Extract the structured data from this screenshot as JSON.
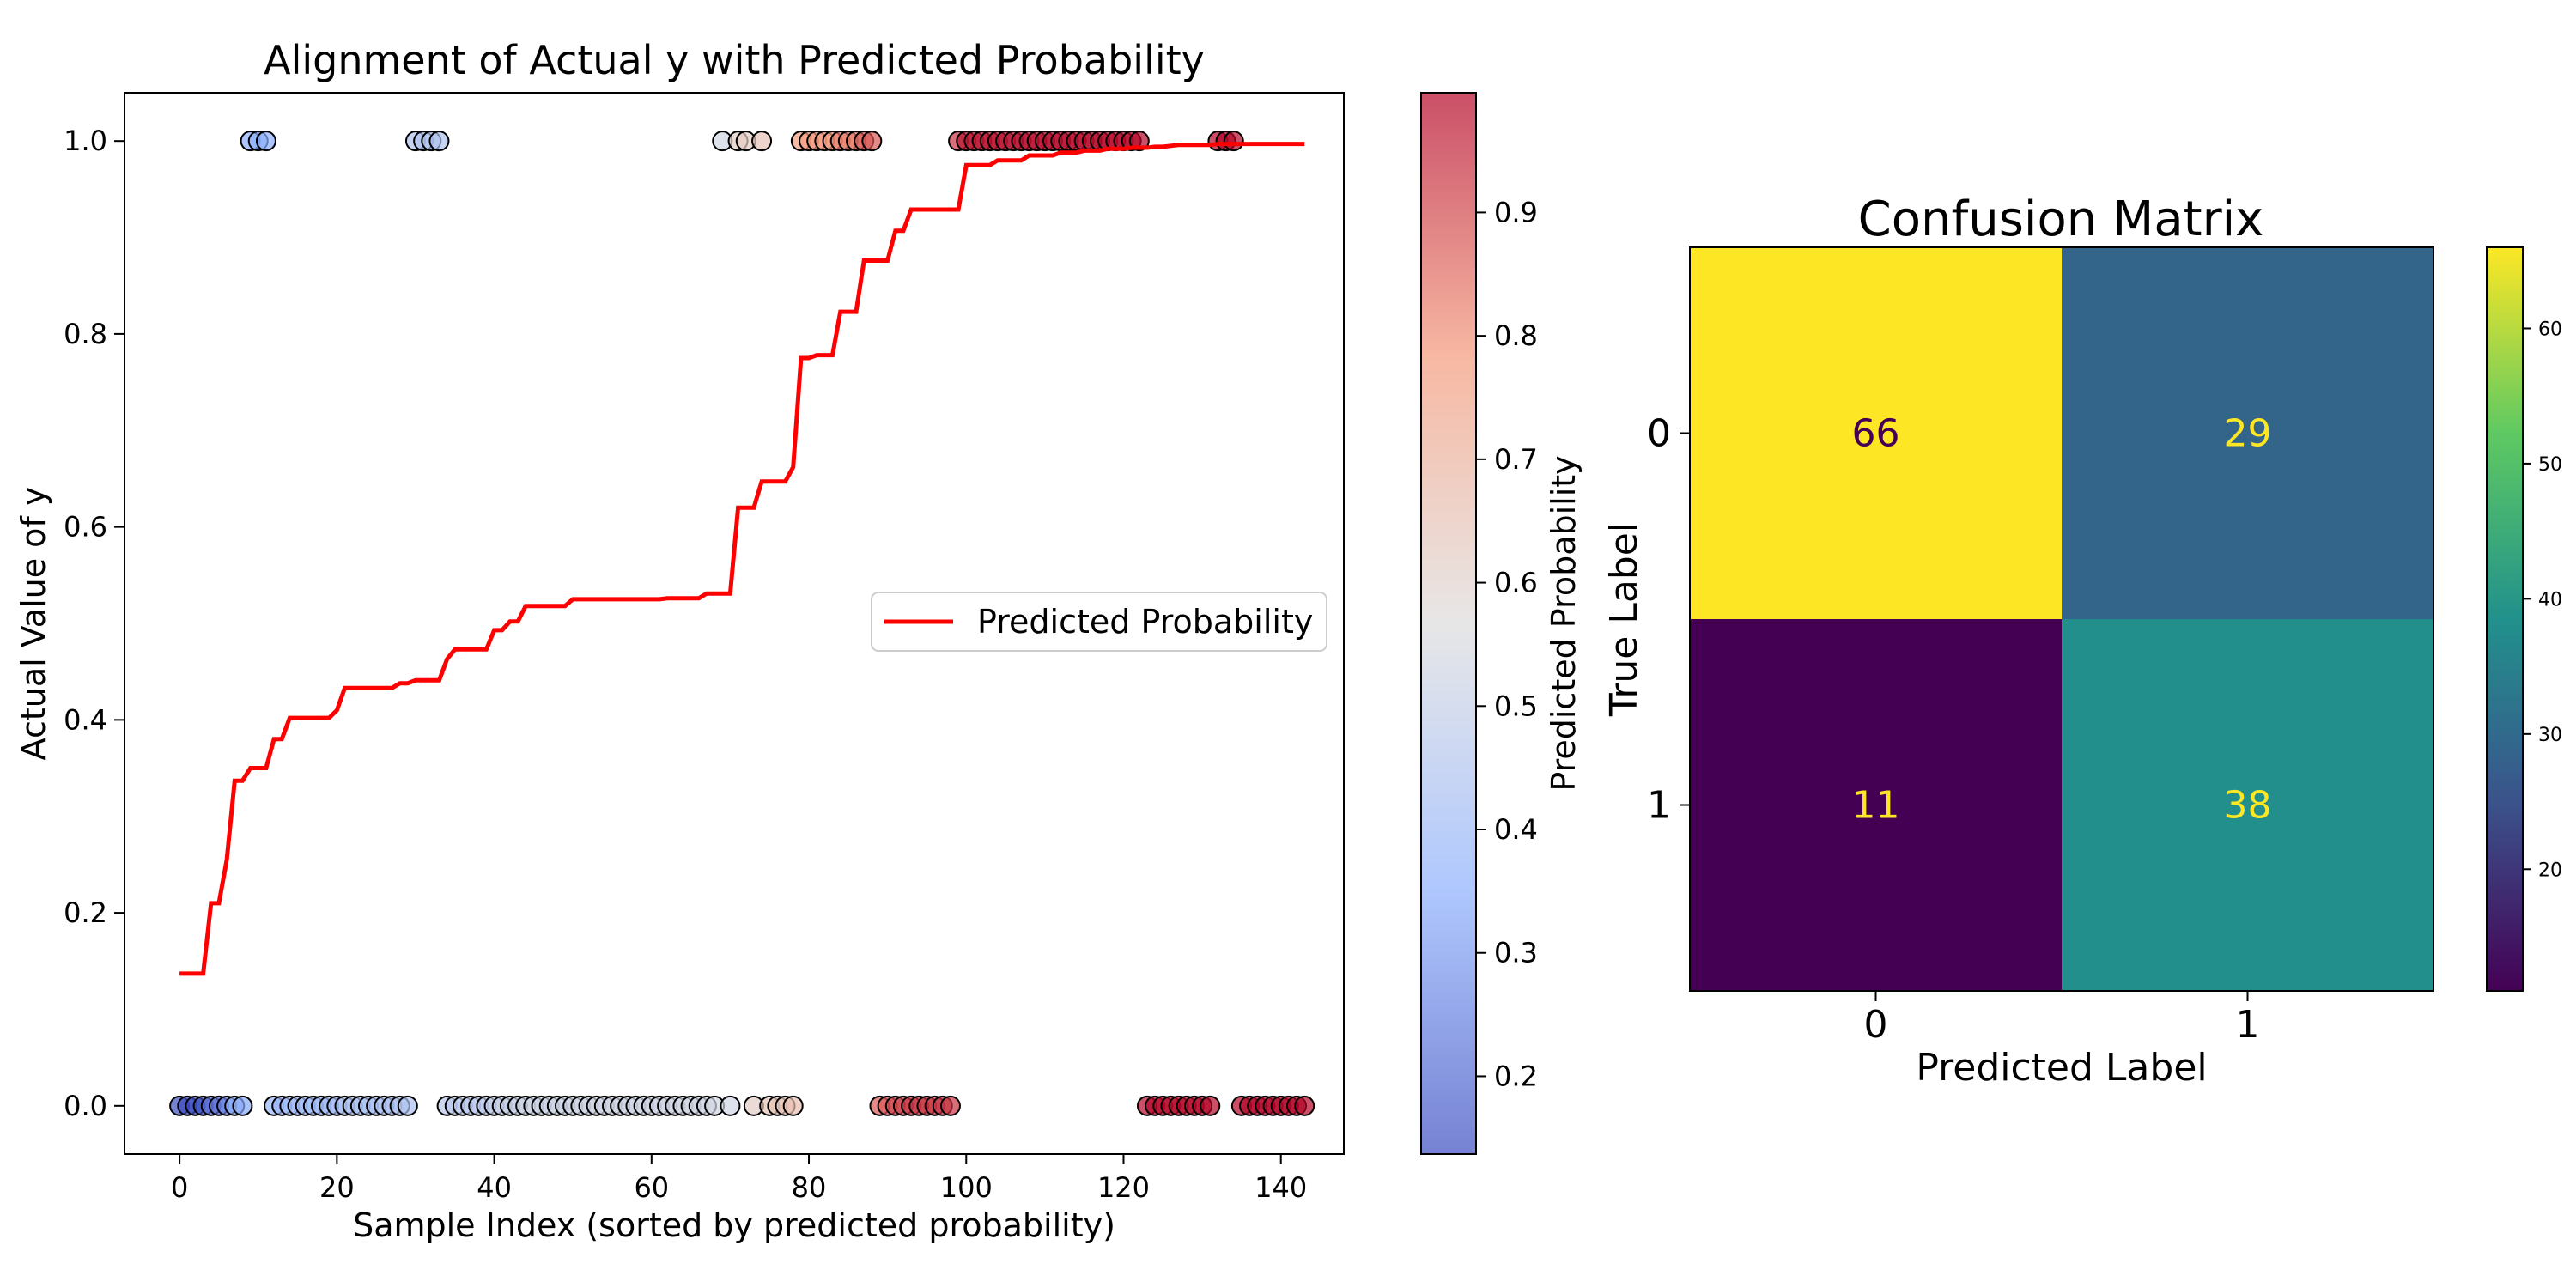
{
  "chart_data": [
    {
      "type": "scatter",
      "title": "Alignment of Actual y with Predicted Probability",
      "xlabel": "Sample Index (sorted by predicted probability)",
      "ylabel": "Actual Value of y",
      "xlim": [
        -7,
        148
      ],
      "ylim": [
        -0.05,
        1.05
      ],
      "xticks": [
        0,
        20,
        40,
        60,
        80,
        100,
        120,
        140
      ],
      "yticks": [
        0.0,
        0.2,
        0.4,
        0.6,
        0.8,
        1.0
      ],
      "xticklabels": [
        "0",
        "20",
        "40",
        "60",
        "80",
        "100",
        "120",
        "140"
      ],
      "yticklabels": [
        "0.0",
        "0.2",
        "0.4",
        "0.6",
        "0.8",
        "1.0"
      ],
      "grid": false,
      "legend": {
        "position": "center-right",
        "entries": [
          "Predicted Probability"
        ]
      },
      "colorbar": {
        "label": "Predicted Probability",
        "range": [
          0.137,
          0.997
        ],
        "ticks": [
          0.2,
          0.3,
          0.4,
          0.5,
          0.6,
          0.7,
          0.8,
          0.9
        ],
        "ticklabels": [
          "0.2",
          "0.3",
          "0.4",
          "0.5",
          "0.6",
          "0.7",
          "0.8",
          "0.9"
        ],
        "colormap": "coolwarm",
        "alpha": 0.7
      },
      "line_series": {
        "name": "Predicted Probability",
        "color": "#ff0000",
        "x": [
          0,
          1,
          2,
          3,
          4,
          5,
          6,
          7,
          8,
          9,
          10,
          11,
          12,
          13,
          14,
          15,
          16,
          17,
          18,
          19,
          20,
          21,
          22,
          23,
          24,
          25,
          26,
          27,
          28,
          29,
          30,
          31,
          32,
          33,
          34,
          35,
          36,
          37,
          38,
          39,
          40,
          41,
          42,
          43,
          44,
          45,
          46,
          47,
          48,
          49,
          50,
          51,
          52,
          53,
          54,
          55,
          56,
          57,
          58,
          59,
          60,
          61,
          62,
          63,
          64,
          65,
          66,
          67,
          68,
          69,
          70,
          71,
          72,
          73,
          74,
          75,
          76,
          77,
          78,
          79,
          80,
          81,
          82,
          83,
          84,
          85,
          86,
          87,
          88,
          89,
          90,
          91,
          92,
          93,
          94,
          95,
          96,
          97,
          98,
          99,
          100,
          101,
          102,
          103,
          104,
          105,
          106,
          107,
          108,
          109,
          110,
          111,
          112,
          113,
          114,
          115,
          116,
          117,
          118,
          119,
          120,
          121,
          122,
          123,
          124,
          125,
          126,
          127,
          128,
          129,
          130,
          131,
          132,
          133,
          134,
          135,
          136,
          137,
          138,
          139,
          140,
          141,
          142,
          143
        ],
        "y": [
          0.137,
          0.137,
          0.137,
          0.137,
          0.21,
          0.21,
          0.255,
          0.337,
          0.337,
          0.35,
          0.35,
          0.35,
          0.38,
          0.38,
          0.402,
          0.402,
          0.402,
          0.402,
          0.402,
          0.402,
          0.41,
          0.433,
          0.433,
          0.433,
          0.433,
          0.433,
          0.433,
          0.433,
          0.438,
          0.438,
          0.441,
          0.441,
          0.441,
          0.441,
          0.463,
          0.473,
          0.473,
          0.473,
          0.473,
          0.473,
          0.493,
          0.493,
          0.502,
          0.502,
          0.518,
          0.518,
          0.518,
          0.518,
          0.518,
          0.518,
          0.525,
          0.525,
          0.525,
          0.525,
          0.525,
          0.525,
          0.525,
          0.525,
          0.525,
          0.525,
          0.525,
          0.525,
          0.526,
          0.526,
          0.526,
          0.526,
          0.526,
          0.531,
          0.531,
          0.531,
          0.531,
          0.62,
          0.62,
          0.62,
          0.647,
          0.647,
          0.647,
          0.647,
          0.662,
          0.775,
          0.775,
          0.778,
          0.778,
          0.778,
          0.823,
          0.823,
          0.823,
          0.876,
          0.876,
          0.876,
          0.876,
          0.907,
          0.907,
          0.929,
          0.929,
          0.929,
          0.929,
          0.929,
          0.929,
          0.929,
          0.975,
          0.975,
          0.975,
          0.975,
          0.98,
          0.98,
          0.98,
          0.98,
          0.985,
          0.985,
          0.985,
          0.985,
          0.988,
          0.988,
          0.988,
          0.99,
          0.99,
          0.99,
          0.992,
          0.992,
          0.992,
          0.993,
          0.993,
          0.993,
          0.994,
          0.994,
          0.995,
          0.996,
          0.996,
          0.996,
          0.996,
          0.996,
          0.997,
          0.997,
          0.997,
          0.997,
          0.997,
          0.997,
          0.997,
          0.997,
          0.997,
          0.997,
          0.997,
          0.997
        ]
      },
      "scatter_series": {
        "x": [
          0,
          1,
          2,
          3,
          4,
          5,
          6,
          7,
          8,
          9,
          10,
          11,
          12,
          13,
          14,
          15,
          16,
          17,
          18,
          19,
          20,
          21,
          22,
          23,
          24,
          25,
          26,
          27,
          28,
          29,
          30,
          31,
          32,
          33,
          34,
          35,
          36,
          37,
          38,
          39,
          40,
          41,
          42,
          43,
          44,
          45,
          46,
          47,
          48,
          49,
          50,
          51,
          52,
          53,
          54,
          55,
          56,
          57,
          58,
          59,
          60,
          61,
          62,
          63,
          64,
          65,
          66,
          67,
          68,
          69,
          70,
          71,
          72,
          73,
          74,
          75,
          76,
          77,
          78,
          79,
          80,
          81,
          82,
          83,
          84,
          85,
          86,
          87,
          88,
          89,
          90,
          91,
          92,
          93,
          94,
          95,
          96,
          97,
          98,
          99,
          100,
          101,
          102,
          103,
          104,
          105,
          106,
          107,
          108,
          109,
          110,
          111,
          112,
          113,
          114,
          115,
          116,
          117,
          118,
          119,
          120,
          121,
          122,
          123,
          124,
          125,
          126,
          127,
          128,
          129,
          130,
          131,
          132,
          133,
          134,
          135,
          136,
          137,
          138,
          139,
          140,
          141,
          142,
          143
        ],
        "y": [
          0,
          0,
          0,
          0,
          0,
          0,
          0,
          0,
          0,
          1,
          1,
          1,
          0,
          0,
          0,
          0,
          0,
          0,
          0,
          0,
          0,
          0,
          0,
          0,
          0,
          0,
          0,
          0,
          0,
          0,
          1,
          1,
          1,
          1,
          0,
          0,
          0,
          0,
          0,
          0,
          0,
          0,
          0,
          0,
          0,
          0,
          0,
          0,
          0,
          0,
          0,
          0,
          0,
          0,
          0,
          0,
          0,
          0,
          0,
          0,
          0,
          0,
          0,
          0,
          0,
          0,
          0,
          0,
          0,
          1,
          0,
          1,
          1,
          0,
          1,
          0,
          0,
          0,
          0,
          1,
          1,
          1,
          1,
          1,
          1,
          1,
          1,
          1,
          1,
          0,
          0,
          0,
          0,
          0,
          0,
          0,
          0,
          0,
          0,
          1,
          1,
          1,
          1,
          1,
          1,
          1,
          1,
          1,
          1,
          1,
          1,
          1,
          1,
          1,
          1,
          1,
          1,
          1,
          1,
          1,
          1,
          1,
          1,
          0,
          0,
          0,
          0,
          0,
          0,
          0,
          0,
          0,
          1,
          1,
          1,
          0,
          0,
          0,
          0,
          0,
          0,
          0,
          0,
          0
        ]
      }
    },
    {
      "type": "heatmap",
      "title": "Confusion Matrix",
      "xlabel": "Predicted Label",
      "ylabel": "True Label",
      "xticklabels": [
        "0",
        "1"
      ],
      "yticklabels": [
        "0",
        "1"
      ],
      "values": [
        [
          66,
          29
        ],
        [
          11,
          38
        ]
      ],
      "colormap": "viridis",
      "colorbar": {
        "range": [
          11,
          66
        ],
        "ticks": [
          20,
          30,
          40,
          50,
          60
        ],
        "ticklabels": [
          "20",
          "30",
          "40",
          "50",
          "60"
        ]
      }
    }
  ]
}
